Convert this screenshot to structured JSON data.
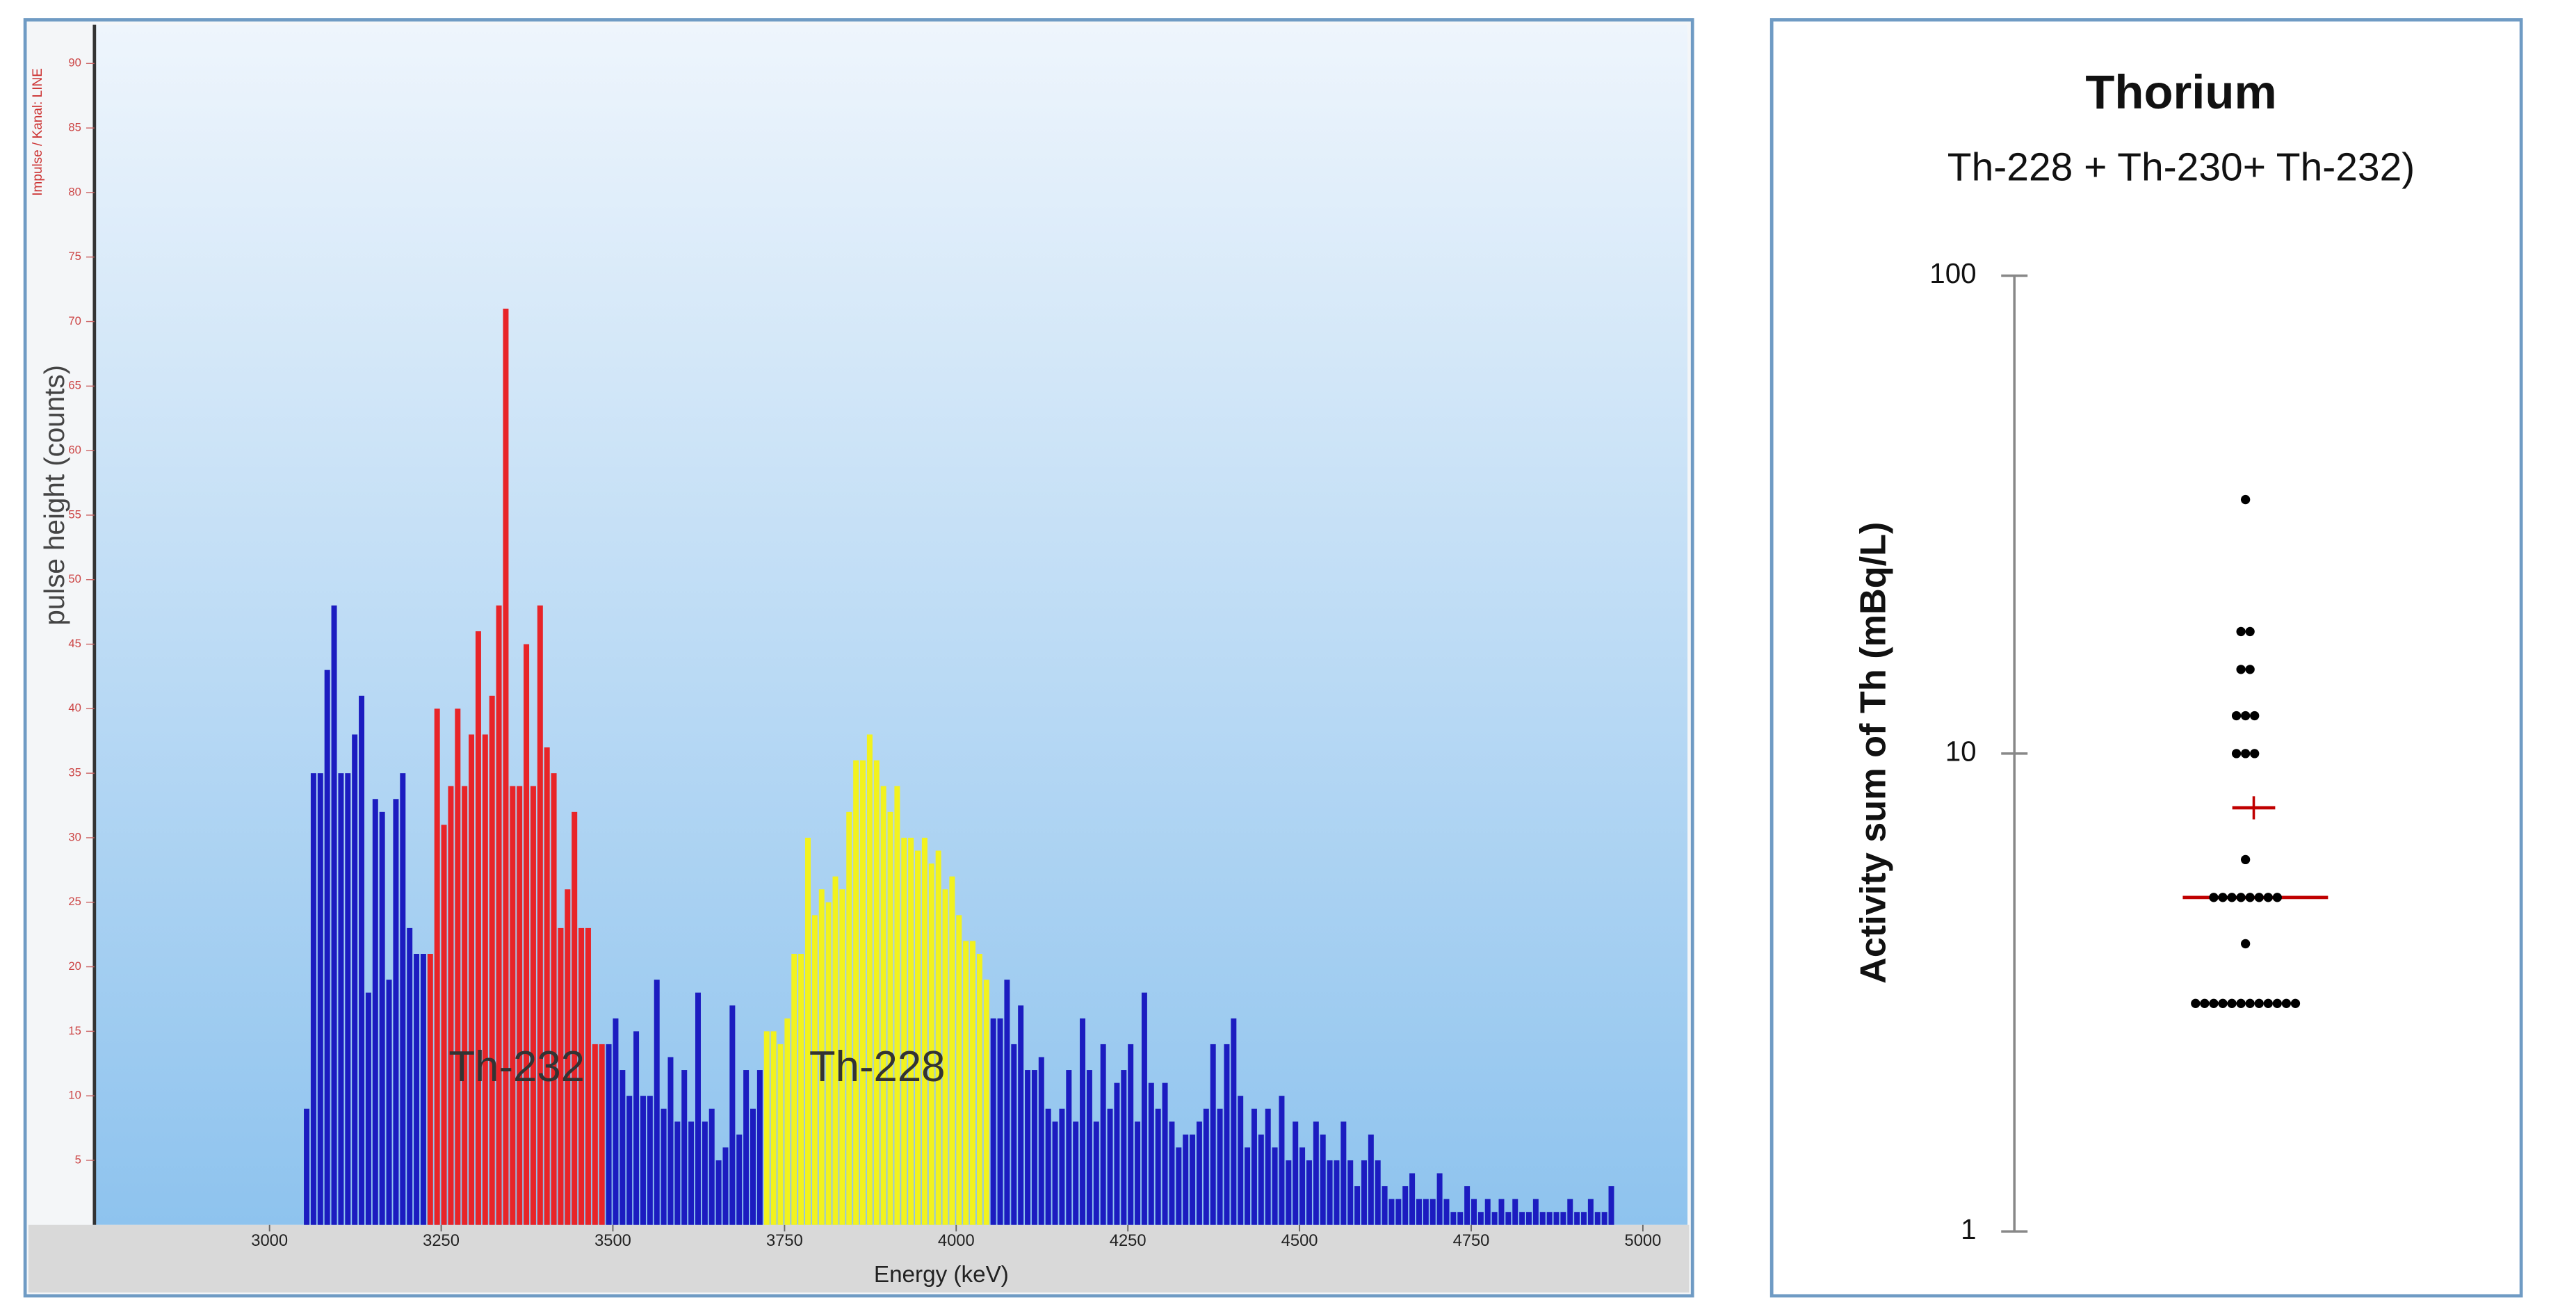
{
  "chart_data": [
    {
      "type": "histogram",
      "xlabel": "Energy (keV)",
      "ylabel": "pulse height (counts)",
      "ylabel_secondary": "Impulse / Kanal: LINE",
      "bins": [
        3050,
        3060,
        3070,
        3080,
        3090,
        3100,
        3110,
        3120,
        3130,
        3140,
        3150,
        3160,
        3170,
        3180,
        3190,
        3200,
        3210,
        3220,
        3230,
        3240,
        3250,
        3260,
        3270,
        3280,
        3290,
        3300,
        3310,
        3320,
        3330,
        3340,
        3350,
        3360,
        3370,
        3380,
        3390,
        3400,
        3410,
        3420,
        3430,
        3440,
        3450,
        3460,
        3470,
        3480,
        3490,
        3500,
        3510,
        3520,
        3530,
        3540,
        3550,
        3560,
        3570,
        3580,
        3590,
        3600,
        3610,
        3620,
        3630,
        3640,
        3650,
        3660,
        3670,
        3680,
        3690,
        3700,
        3710,
        3720,
        3730,
        3740,
        3750,
        3760,
        3770,
        3780,
        3790,
        3800,
        3810,
        3820,
        3830,
        3840,
        3850,
        3860,
        3870,
        3880,
        3890,
        3900,
        3910,
        3920,
        3930,
        3940,
        3950,
        3960,
        3970,
        3980,
        3990,
        4000,
        4010,
        4020,
        4030,
        4040,
        4050,
        4060,
        4070,
        4080,
        4090,
        4100,
        4110,
        4120,
        4130,
        4140,
        4150,
        4160,
        4170,
        4180,
        4190,
        4200,
        4210,
        4220,
        4230,
        4240,
        4250,
        4260,
        4270,
        4280,
        4290,
        4300,
        4310,
        4320,
        4330,
        4340,
        4350,
        4360,
        4370,
        4380,
        4390,
        4400,
        4410,
        4420,
        4430,
        4440,
        4450,
        4460,
        4470,
        4480,
        4490,
        4500,
        4510,
        4520,
        4530,
        4540,
        4550,
        4560,
        4570,
        4580,
        4590,
        4600,
        4610,
        4620,
        4630,
        4640,
        4650,
        4660,
        4670,
        4680,
        4690,
        4700,
        4710,
        4720,
        4730,
        4740,
        4750,
        4760,
        4770,
        4780,
        4790,
        4800,
        4810,
        4820,
        4830,
        4840,
        4850,
        4860,
        4870,
        4880,
        4890,
        4900,
        4910,
        4920,
        4930,
        4940,
        4950,
        4960
      ],
      "counts": [
        9,
        35,
        35,
        43,
        48,
        35,
        35,
        38,
        41,
        18,
        33,
        32,
        19,
        33,
        35,
        23,
        21,
        21,
        21,
        40,
        31,
        34,
        40,
        34,
        38,
        46,
        38,
        41,
        48,
        71,
        34,
        34,
        45,
        34,
        48,
        37,
        35,
        23,
        26,
        32,
        23,
        23,
        14,
        14,
        14,
        16,
        12,
        10,
        15,
        10,
        10,
        19,
        9,
        13,
        8,
        12,
        8,
        18,
        8,
        9,
        5,
        6,
        17,
        7,
        12,
        9,
        12,
        15,
        15,
        14,
        16,
        21,
        21,
        30,
        24,
        26,
        25,
        27,
        26,
        32,
        36,
        36,
        38,
        36,
        34,
        32,
        34,
        30,
        30,
        29,
        30,
        28,
        29,
        26,
        27,
        24,
        22,
        22,
        21,
        19,
        16,
        16,
        19,
        14,
        17,
        12,
        12,
        13,
        9,
        8,
        9,
        12,
        8,
        16,
        12,
        8,
        14,
        9,
        11,
        12,
        14,
        8,
        18,
        11,
        9,
        11,
        8,
        6,
        7,
        7,
        8,
        9,
        14,
        9,
        14,
        16,
        10,
        6,
        9,
        7,
        9,
        6,
        10,
        5,
        8,
        6,
        5,
        8,
        7,
        5,
        5,
        8,
        5,
        3,
        5,
        7,
        5,
        3,
        2,
        2,
        3,
        4,
        2,
        2,
        2,
        4,
        2,
        1,
        1,
        3,
        2,
        1,
        2,
        1,
        2,
        1,
        2,
        1,
        1,
        2,
        1,
        1,
        1,
        1,
        2,
        1,
        1,
        2,
        1,
        1,
        3
      ],
      "color": "#1c1cc0",
      "highlights": [
        {
          "label": "Th-232",
          "range": [
            3230,
            3490
          ],
          "color": "#e82428"
        },
        {
          "label": "Th-228",
          "range": [
            3720,
            4050
          ],
          "color": "#f2f21e"
        }
      ],
      "xlim": [
        2745,
        5065
      ],
      "xticks": [
        3000,
        3250,
        3500,
        3750,
        4000,
        4250,
        4500,
        4750,
        5000
      ],
      "ylim": [
        0,
        93
      ],
      "yticks": [
        5,
        10,
        15,
        20,
        25,
        30,
        35,
        40,
        45,
        50,
        55,
        60,
        65,
        70,
        75,
        80,
        85,
        90
      ]
    },
    {
      "type": "dot",
      "title": "Thorium",
      "subtitle": "Th-228 + Th-230+ Th-232)",
      "ylabel": "Activity sum of Th (mBq/L)",
      "log_y": true,
      "ylim": [
        1,
        100
      ],
      "yticks": [
        1,
        10,
        100
      ],
      "values": [
        34,
        18,
        18,
        15,
        15,
        12,
        12,
        12,
        10,
        10,
        10,
        6,
        5,
        5,
        5,
        5,
        5,
        5,
        5,
        5,
        4,
        3,
        3,
        3,
        3,
        3,
        3,
        3,
        3,
        3,
        3,
        3,
        3
      ],
      "color": "#000000",
      "median": 5,
      "mean": 7.7,
      "summary_color": "#c00000"
    }
  ]
}
